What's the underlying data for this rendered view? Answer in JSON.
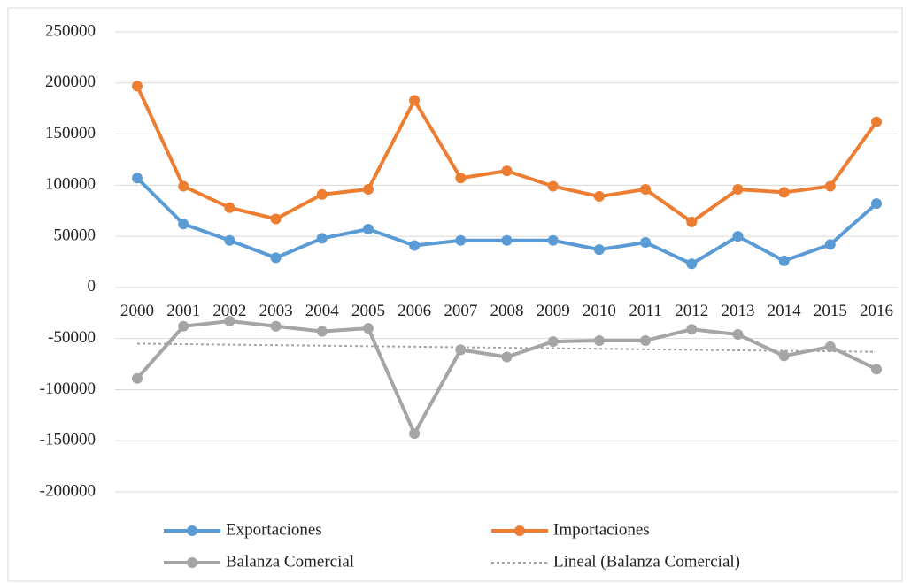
{
  "chart_data": {
    "type": "line",
    "categories": [
      "2000",
      "2001",
      "2002",
      "2003",
      "2004",
      "2005",
      "2006",
      "2007",
      "2008",
      "2009",
      "2010",
      "2011",
      "2012",
      "2013",
      "2014",
      "2015",
      "2016"
    ],
    "series": [
      {
        "name": "Exportaciones",
        "color": "#5b9bd5",
        "values": [
          107000,
          62000,
          46000,
          29000,
          48000,
          57000,
          41000,
          46000,
          46000,
          46000,
          37000,
          44000,
          23000,
          50000,
          26000,
          42000,
          82000
        ]
      },
      {
        "name": "Importaciones",
        "color": "#ed7d31",
        "values": [
          197000,
          99000,
          78000,
          67000,
          91000,
          96000,
          183000,
          107000,
          114000,
          99000,
          89000,
          96000,
          64000,
          96000,
          93000,
          99000,
          162000
        ]
      },
      {
        "name": "Balanza Comercial",
        "color": "#a5a5a5",
        "values": [
          -89000,
          -38000,
          -33000,
          -38000,
          -43000,
          -40000,
          -143000,
          -61000,
          -68000,
          -53000,
          -52000,
          -52000,
          -41000,
          -46000,
          -67000,
          -58000,
          -80000
        ]
      },
      {
        "name": "Lineal (Balanza Comercial)",
        "color": "#a5a5a5",
        "dashed": true,
        "markers": false,
        "values": [
          -55000,
          -55500,
          -56000,
          -56500,
          -57000,
          -57500,
          -58000,
          -58500,
          -59000,
          -59500,
          -60000,
          -60500,
          -61000,
          -61500,
          -62000,
          -62500,
          -63000
        ]
      }
    ],
    "ylim": [
      -200000,
      250000
    ],
    "yticks": [
      -200000,
      -150000,
      -100000,
      -50000,
      0,
      50000,
      100000,
      150000,
      200000,
      250000
    ],
    "grid": true
  }
}
